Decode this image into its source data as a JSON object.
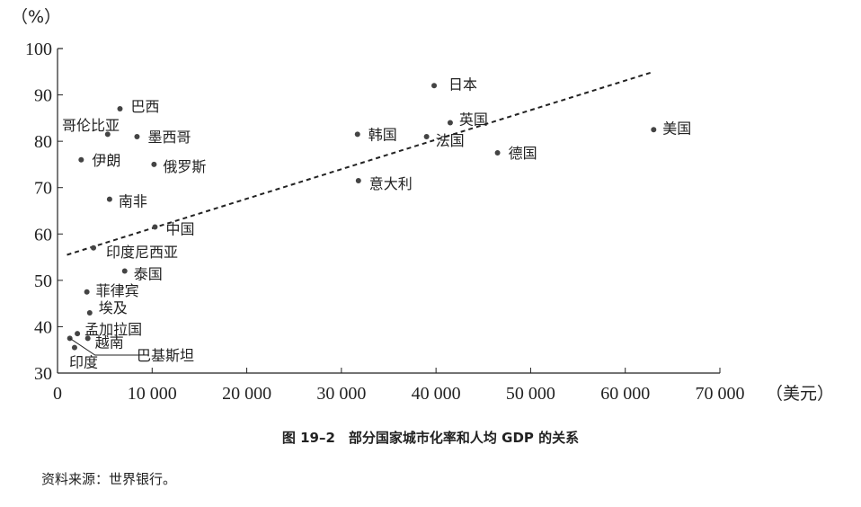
{
  "caption": "图 19–2　部分国家城市化率和人均 GDP 的关系",
  "source": "资料来源：世界银行。",
  "chart_data": {
    "type": "scatter",
    "title": "",
    "xlabel": "（美元）",
    "ylabel": "（%）",
    "xlim": [
      0,
      70000
    ],
    "ylim": [
      30,
      100
    ],
    "xticks": [
      0,
      10000,
      20000,
      30000,
      40000,
      50000,
      60000,
      70000
    ],
    "xtick_labels": [
      "0",
      "10 000",
      "20 000",
      "30 000",
      "40 000",
      "50 000",
      "60 000",
      "70 000"
    ],
    "yticks": [
      30,
      40,
      50,
      60,
      70,
      80,
      90,
      100
    ],
    "ytick_labels": [
      "30",
      "40",
      "50",
      "60",
      "70",
      "80",
      "90",
      "100"
    ],
    "grid": false,
    "points": [
      {
        "label": "巴西",
        "x": 6600,
        "y": 87
      },
      {
        "label": "哥伦比亚",
        "x": 5300,
        "y": 81.5
      },
      {
        "label": "墨西哥",
        "x": 8400,
        "y": 81
      },
      {
        "label": "伊朗",
        "x": 2500,
        "y": 76
      },
      {
        "label": "俄罗斯",
        "x": 10200,
        "y": 75
      },
      {
        "label": "南非",
        "x": 5500,
        "y": 67.5
      },
      {
        "label": "中国",
        "x": 10300,
        "y": 61.5
      },
      {
        "label": "印度尼西亚",
        "x": 3800,
        "y": 57
      },
      {
        "label": "泰国",
        "x": 7100,
        "y": 52
      },
      {
        "label": "菲律宾",
        "x": 3100,
        "y": 47.5
      },
      {
        "label": "埃及",
        "x": 3400,
        "y": 43
      },
      {
        "label": "孟加拉国",
        "x": 2100,
        "y": 38.5
      },
      {
        "label": "越南",
        "x": 3200,
        "y": 37.5
      },
      {
        "label": "巴基斯坦",
        "x": 1300,
        "y": 37.5
      },
      {
        "label": "印度",
        "x": 1800,
        "y": 35.5
      },
      {
        "label": "日本",
        "x": 39800,
        "y": 92
      },
      {
        "label": "英国",
        "x": 41500,
        "y": 84
      },
      {
        "label": "韩国",
        "x": 31700,
        "y": 81.5
      },
      {
        "label": "法国",
        "x": 39000,
        "y": 81
      },
      {
        "label": "德国",
        "x": 46500,
        "y": 77.5
      },
      {
        "label": "意大利",
        "x": 31800,
        "y": 71.5
      },
      {
        "label": "美国",
        "x": 63000,
        "y": 82.5
      }
    ],
    "trendline": {
      "style": "dashed",
      "from": {
        "x": 1000,
        "y": 55.5
      },
      "to": {
        "x": 63000,
        "y": 95
      }
    }
  }
}
